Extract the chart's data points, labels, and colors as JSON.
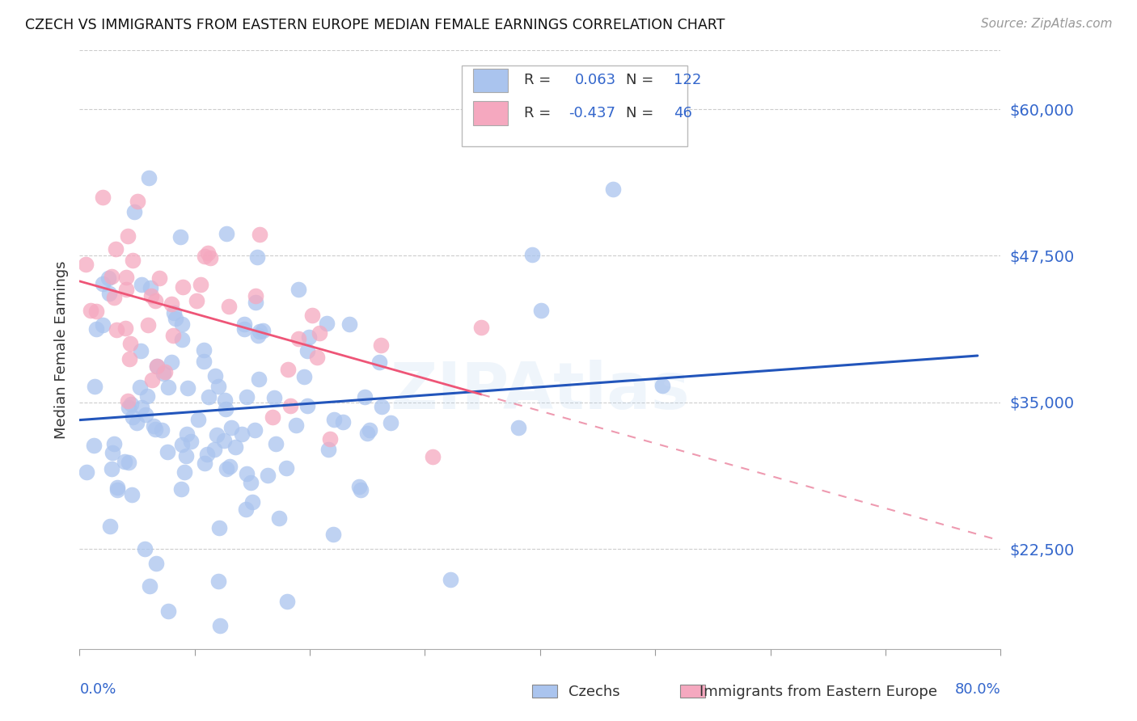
{
  "title": "CZECH VS IMMIGRANTS FROM EASTERN EUROPE MEDIAN FEMALE EARNINGS CORRELATION CHART",
  "source": "Source: ZipAtlas.com",
  "ylabel": "Median Female Earnings",
  "ytick_labels": [
    "$22,500",
    "$35,000",
    "$47,500",
    "$60,000"
  ],
  "ytick_values": [
    22500,
    35000,
    47500,
    60000
  ],
  "ymin": 14000,
  "ymax": 65000,
  "xmin": 0.0,
  "xmax": 0.8,
  "r_czech": 0.063,
  "n_czech": 122,
  "r_imm": -0.437,
  "n_imm": 46,
  "background_color": "#ffffff",
  "grid_color": "#cccccc",
  "title_color": "#111111",
  "blue_color": "#3366cc",
  "czech_scatter_color": "#aac4ee",
  "immigrant_scatter_color": "#f5a8bf",
  "czech_line_color": "#2255bb",
  "immigrant_line_solid_color": "#ee5577",
  "immigrant_line_dash_color": "#ee9ab0",
  "legend_box_color": "#dddddd",
  "tick_label_color": "#3366cc",
  "source_color": "#999999",
  "ylabel_color": "#333333"
}
